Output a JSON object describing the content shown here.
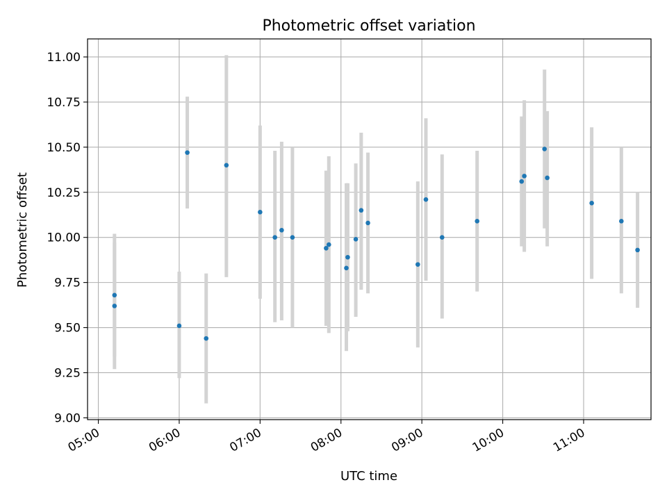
{
  "chart_data": {
    "type": "scatter",
    "title": "Photometric offset variation",
    "xlabel": "UTC time",
    "ylabel": "Photometric offset",
    "xlim": [
      "04:52",
      "11:50"
    ],
    "ylim": [
      8.99,
      11.1
    ],
    "x_ticks": [
      "05:00",
      "06:00",
      "07:00",
      "08:00",
      "09:00",
      "10:00",
      "11:00"
    ],
    "y_ticks": [
      "9.00",
      "9.25",
      "9.50",
      "9.75",
      "10.00",
      "10.25",
      "10.50",
      "10.75",
      "11.00"
    ],
    "grid": true,
    "colors": {
      "marker": "#1f77b4",
      "errorbar": "#d3d3d3",
      "grid": "#b0b0b0"
    },
    "points": [
      {
        "x": "05:12",
        "y": 9.68,
        "ylo": 9.34,
        "yhi": 10.02
      },
      {
        "x": "05:12",
        "y": 9.62,
        "ylo": 9.27,
        "yhi": 9.97
      },
      {
        "x": "06:00",
        "y": 9.51,
        "ylo": 9.22,
        "yhi": 9.81
      },
      {
        "x": "06:06",
        "y": 10.47,
        "ylo": 10.16,
        "yhi": 10.78
      },
      {
        "x": "06:20",
        "y": 9.44,
        "ylo": 9.08,
        "yhi": 9.8
      },
      {
        "x": "06:35",
        "y": 10.4,
        "ylo": 9.78,
        "yhi": 11.01
      },
      {
        "x": "07:00",
        "y": 10.14,
        "ylo": 9.66,
        "yhi": 10.62
      },
      {
        "x": "07:11",
        "y": 10.0,
        "ylo": 9.53,
        "yhi": 10.48
      },
      {
        "x": "07:16",
        "y": 10.04,
        "ylo": 9.54,
        "yhi": 10.53
      },
      {
        "x": "07:24",
        "y": 10.0,
        "ylo": 9.5,
        "yhi": 10.5
      },
      {
        "x": "07:49",
        "y": 9.94,
        "ylo": 9.51,
        "yhi": 10.37
      },
      {
        "x": "07:51",
        "y": 9.96,
        "ylo": 9.47,
        "yhi": 10.45
      },
      {
        "x": "08:04",
        "y": 9.83,
        "ylo": 9.37,
        "yhi": 10.3
      },
      {
        "x": "08:05",
        "y": 9.89,
        "ylo": 9.48,
        "yhi": 10.3
      },
      {
        "x": "08:11",
        "y": 9.99,
        "ylo": 9.56,
        "yhi": 10.41
      },
      {
        "x": "08:15",
        "y": 10.15,
        "ylo": 9.71,
        "yhi": 10.58
      },
      {
        "x": "08:20",
        "y": 10.08,
        "ylo": 9.69,
        "yhi": 10.47
      },
      {
        "x": "08:57",
        "y": 9.85,
        "ylo": 9.39,
        "yhi": 10.31
      },
      {
        "x": "09:03",
        "y": 10.21,
        "ylo": 9.76,
        "yhi": 10.66
      },
      {
        "x": "09:15",
        "y": 10.0,
        "ylo": 9.55,
        "yhi": 10.46
      },
      {
        "x": "09:41",
        "y": 10.09,
        "ylo": 9.7,
        "yhi": 10.48
      },
      {
        "x": "10:14",
        "y": 10.31,
        "ylo": 9.95,
        "yhi": 10.67
      },
      {
        "x": "10:16",
        "y": 10.34,
        "ylo": 9.92,
        "yhi": 10.76
      },
      {
        "x": "10:31",
        "y": 10.49,
        "ylo": 10.05,
        "yhi": 10.93
      },
      {
        "x": "10:33",
        "y": 10.33,
        "ylo": 9.95,
        "yhi": 10.7
      },
      {
        "x": "11:06",
        "y": 10.19,
        "ylo": 9.77,
        "yhi": 10.61
      },
      {
        "x": "11:28",
        "y": 10.09,
        "ylo": 9.69,
        "yhi": 10.5
      },
      {
        "x": "11:40",
        "y": 9.93,
        "ylo": 9.61,
        "yhi": 10.25
      }
    ]
  }
}
